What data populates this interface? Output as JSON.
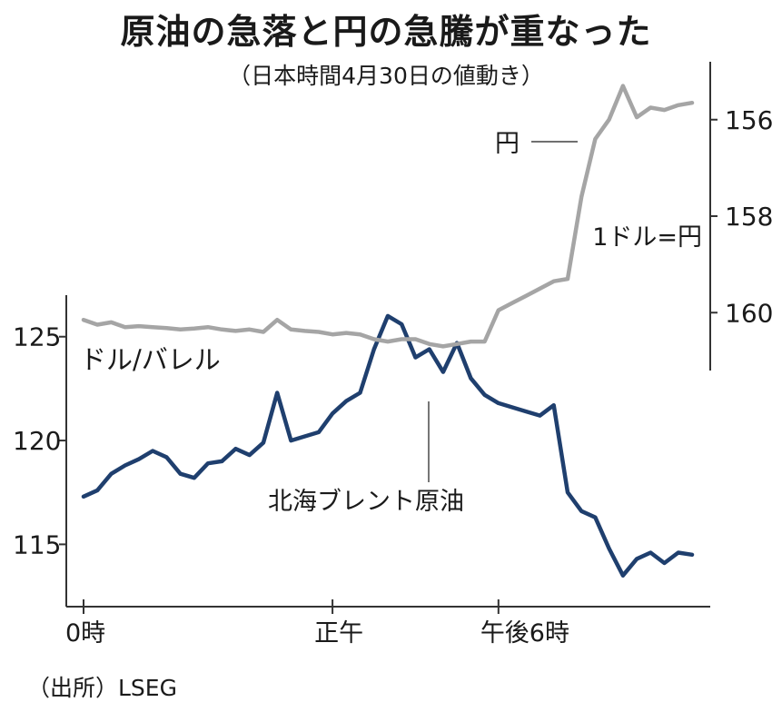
{
  "title": "原油の急落と円の急騰が重なった",
  "subtitle": "（日本時間4月30日の値動き）",
  "source": "（出所）LSEG",
  "chart_data": [
    {
      "type": "line",
      "name": "北海ブレント原油",
      "ylabel": "ドル/バレル",
      "y_axis": "left",
      "ylim": [
        112,
        127
      ],
      "yticks": [
        115,
        120,
        125
      ],
      "color": "#1f3f6e",
      "x_unit": "hours (Japan time)",
      "x": [
        0,
        0.5,
        1,
        1.5,
        2,
        2.5,
        3,
        3.5,
        4,
        4.5,
        5,
        5.5,
        6,
        6.5,
        7,
        7.5,
        8,
        8.5,
        9,
        9.5,
        10,
        10.5,
        11,
        11.5,
        12,
        12.5,
        13,
        13.5,
        14,
        14.5,
        15,
        15.5,
        16,
        16.5,
        17,
        17.5,
        18,
        18.5,
        19,
        19.5,
        20,
        20.5,
        21,
        21.5,
        22
      ],
      "values": [
        117.3,
        117.6,
        118.4,
        118.8,
        119.1,
        119.5,
        119.2,
        118.4,
        118.2,
        118.9,
        119.0,
        119.6,
        119.3,
        119.9,
        122.3,
        120.0,
        120.2,
        120.4,
        121.3,
        121.9,
        122.3,
        124.4,
        126.0,
        125.6,
        124.0,
        124.4,
        123.3,
        124.7,
        123.0,
        122.2,
        121.8,
        121.6,
        121.4,
        121.2,
        121.7,
        117.5,
        116.6,
        116.3,
        114.8,
        113.5,
        114.3,
        114.6,
        114.1,
        114.6,
        114.5
      ]
    },
    {
      "type": "line",
      "name": "円",
      "ylabel": "1ドル=円",
      "y_axis": "right",
      "y_inverted": true,
      "ylim": [
        161.2,
        154.8
      ],
      "yticks": [
        156,
        158,
        160
      ],
      "color": "#a5a5a5",
      "x_unit": "hours (Japan time)",
      "x": [
        0,
        0.5,
        1,
        1.5,
        2,
        2.5,
        3,
        3.5,
        4,
        4.5,
        5,
        5.5,
        6,
        6.5,
        7,
        7.5,
        8,
        8.5,
        9,
        9.5,
        10,
        10.5,
        11,
        11.5,
        12,
        12.5,
        13,
        13.5,
        14,
        14.5,
        15,
        15.5,
        16,
        16.5,
        17,
        17.5,
        18,
        18.5,
        19,
        19.5,
        20,
        20.5,
        21,
        21.5,
        22
      ],
      "values": [
        160.15,
        160.25,
        160.2,
        160.3,
        160.28,
        160.3,
        160.32,
        160.35,
        160.33,
        160.3,
        160.35,
        160.38,
        160.35,
        160.4,
        160.15,
        160.35,
        160.38,
        160.4,
        160.45,
        160.42,
        160.45,
        160.55,
        160.6,
        160.55,
        160.55,
        160.65,
        160.7,
        160.65,
        160.6,
        160.6,
        159.95,
        159.8,
        159.65,
        159.5,
        159.35,
        159.3,
        157.6,
        156.4,
        156.0,
        155.3,
        155.95,
        155.75,
        155.8,
        155.7,
        155.65
      ]
    }
  ],
  "x_ticks": [
    {
      "x": 0,
      "label": "0時"
    },
    {
      "x": 9,
      "label": "正午"
    },
    {
      "x": 15,
      "label": "午後6時"
    }
  ],
  "annotations": {
    "yen": "円",
    "brent": "北海ブレント原油"
  }
}
